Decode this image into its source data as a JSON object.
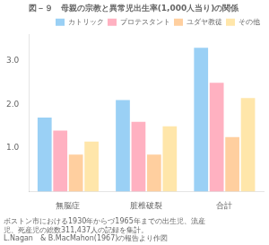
{
  "chart_data": {
    "type": "bar",
    "title": "図－９　母親の宗教と異常児出生率(1,000人当り)の関係",
    "categories": [
      "無脳症",
      "脏椎破裂",
      "合計"
    ],
    "series": [
      {
        "name": "カトリック",
        "values": [
          1.7,
          2.1,
          3.3
        ]
      },
      {
        "name": "プロテスタント",
        "values": [
          1.4,
          1.6,
          2.5
        ]
      },
      {
        "name": "ユダヤ教徒",
        "values": [
          0.85,
          0.85,
          1.25
        ]
      },
      {
        "name": "その他",
        "values": [
          1.15,
          1.5,
          2.15
        ]
      }
    ],
    "ylim": [
      0.0,
      3.6
    ],
    "yticks": [
      {
        "value": 1.0,
        "label": "1.0"
      },
      {
        "value": 2.0,
        "label": "2.0"
      },
      {
        "value": 3.0,
        "label": "3.0"
      }
    ],
    "grid": false,
    "legend": "upper right",
    "annotations": [
      "ボストン市における1930年からづ1965年までの出生児、流産",
      "児、死産児の総数311,437人の記録を集計。",
      "L.Nagan　& B.MacMahon(1967)の報告より作図"
    ]
  }
}
